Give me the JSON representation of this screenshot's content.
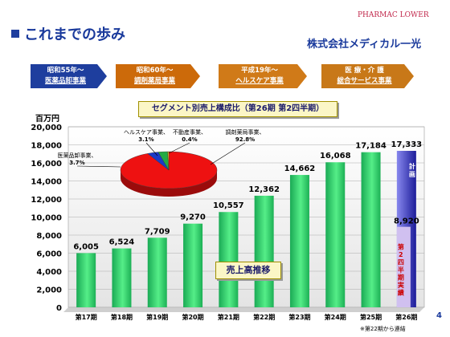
{
  "header": {
    "title": "これまでの歩み",
    "brand_logo_text": "PHARMAC LOWER",
    "company": "株式会社メディカル一光"
  },
  "phases": [
    {
      "line1": "昭和55年～",
      "line2": "医薬品卸事業",
      "color": "#1e3e9e"
    },
    {
      "line1": "昭和60年～",
      "line2": "調剤薬局事業",
      "color": "#cc6a0a"
    },
    {
      "line1": "平成19年～",
      "line2": "ヘルスケア事業",
      "color": "#d07a18"
    },
    {
      "line1": "医 療・介 護",
      "line2": "総合サービス事業",
      "color": "#c87818"
    }
  ],
  "segment_title": "セグメント別売上構成比（第26期 第2四半期）",
  "sales_label": "売上高推移",
  "unit_label": "百万円",
  "page_number": "4",
  "footnote": "※第22期から連結",
  "colors": {
    "bar": "#22cc66",
    "plan": "#4444cc",
    "half": "#d0c0f0"
  },
  "chart_data": {
    "type": "bar",
    "categories": [
      "第17期",
      "第18期",
      "第19期",
      "第20期",
      "第21期",
      "第22期",
      "第23期",
      "第24期",
      "第25期",
      "第26期"
    ],
    "values": [
      6005,
      6524,
      7709,
      9270,
      10557,
      12362,
      14662,
      16068,
      17184,
      17333
    ],
    "value_labels": [
      "6,005",
      "6,524",
      "7,709",
      "9,270",
      "10,557",
      "12,362",
      "14,662",
      "16,068",
      "17,184",
      "17,333"
    ],
    "ylim": [
      0,
      20000
    ],
    "yticks": [
      "0",
      "2,000",
      "4,000",
      "6,000",
      "8,000",
      "10,000",
      "12,000",
      "14,000",
      "16,000",
      "18,000",
      "20,000"
    ],
    "grid": true,
    "plan": {
      "category": "第26期",
      "value": 17333,
      "label": "計画"
    },
    "half_year": {
      "category": "第26期",
      "value": 8920,
      "value_label": "8,920",
      "label": "第2四半期実績"
    },
    "pie": {
      "type": "pie",
      "slices": [
        {
          "label": "調剤薬局事業、",
          "value_label": "92.8%",
          "value": 92.8,
          "color": "#ee1111"
        },
        {
          "label": "医薬品卸事業、",
          "value_label": "3.7%",
          "value": 3.7,
          "color": "#1a3ac8"
        },
        {
          "label": "ヘルスケア事業、",
          "value_label": "3.1%",
          "value": 3.1,
          "color": "#22aa44"
        },
        {
          "label": "不動産事業、",
          "value_label": "0.4%",
          "value": 0.4,
          "color": "#dddd22"
        }
      ]
    }
  }
}
